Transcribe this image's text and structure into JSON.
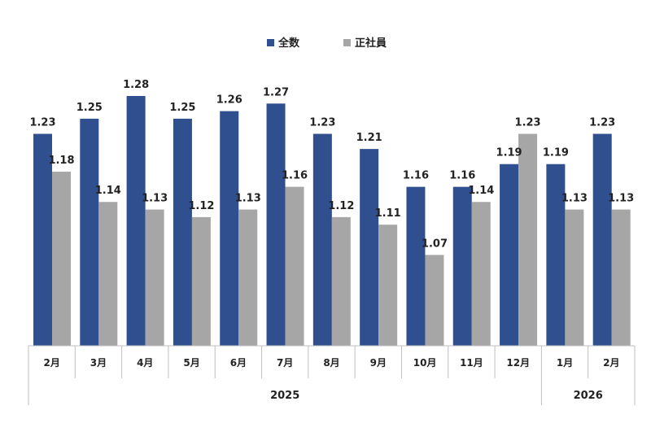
{
  "chart_data": {
    "type": "bar",
    "title": "",
    "xlabel": "",
    "ylabel": "",
    "categories": [
      "2月",
      "3月",
      "4月",
      "5月",
      "6月",
      "7月",
      "8月",
      "9月",
      "10月",
      "11月",
      "12月",
      "1月",
      "2月"
    ],
    "year_groups": [
      {
        "label": "2025",
        "count": 11
      },
      {
        "label": "2026",
        "count": 2
      }
    ],
    "series": [
      {
        "name": "全数",
        "color": "#2f4f8f",
        "values": [
          1.23,
          1.25,
          1.28,
          1.25,
          1.26,
          1.27,
          1.23,
          1.21,
          1.16,
          1.16,
          1.19,
          1.19,
          1.23
        ]
      },
      {
        "name": "正社員",
        "color": "#a6a6a6",
        "values": [
          1.18,
          1.14,
          1.13,
          1.12,
          1.13,
          1.16,
          1.12,
          1.11,
          1.07,
          1.14,
          1.23,
          1.13,
          1.13
        ]
      }
    ],
    "ylim": [
      0.95,
      1.28
    ],
    "grid": false,
    "legend_position": "top-center",
    "data_labels": true
  }
}
